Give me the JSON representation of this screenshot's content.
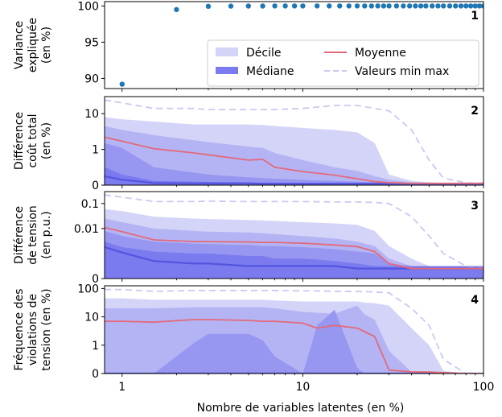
{
  "chart_data": [
    {
      "panel_label": "1",
      "type": "scatter",
      "ylabel": [
        "Variance",
        "expliquée",
        "(en %)"
      ],
      "xscale": "log",
      "xlim": [
        0.8,
        100
      ],
      "ylim": [
        88.6,
        100.6
      ],
      "yticks": [
        90,
        95,
        100
      ],
      "ytick_labels": [
        "90",
        "95",
        "100"
      ],
      "points_color": "#1f77b4",
      "points": [
        [
          1,
          89.2
        ],
        [
          2,
          99.5
        ],
        [
          3,
          99.95
        ],
        [
          4,
          99.98
        ],
        [
          5,
          99.99
        ],
        [
          6,
          99.99
        ],
        [
          7,
          100
        ],
        [
          8,
          100
        ],
        [
          9,
          100
        ],
        [
          10,
          100
        ],
        [
          12,
          100
        ],
        [
          14,
          100
        ],
        [
          16,
          100
        ],
        [
          18,
          100
        ],
        [
          20,
          100
        ],
        [
          22,
          100
        ],
        [
          24,
          100
        ],
        [
          26,
          100
        ],
        [
          28,
          100
        ],
        [
          30,
          100
        ],
        [
          33,
          100
        ],
        [
          36,
          100
        ],
        [
          39,
          100
        ],
        [
          42,
          100
        ],
        [
          45,
          100
        ],
        [
          48,
          100
        ],
        [
          52,
          100
        ],
        [
          56,
          100
        ],
        [
          60,
          100
        ],
        [
          65,
          100
        ],
        [
          70,
          100
        ],
        [
          75,
          100
        ],
        [
          80,
          100
        ],
        [
          85,
          100
        ],
        [
          90,
          100
        ],
        [
          95,
          100
        ],
        [
          100,
          100
        ]
      ],
      "legend": {
        "placement": "lower-right",
        "entries": [
          {
            "label": "Décile",
            "style": "band",
            "color": "#d4d4f8"
          },
          {
            "label": "Moyenne",
            "style": "line",
            "color": "#e3697a"
          },
          {
            "label": "Médiane",
            "style": "line-thick",
            "color": "#7b7bef"
          },
          {
            "label": "Valeurs min max",
            "style": "dashed",
            "color": "#c9c9f2"
          }
        ]
      }
    },
    {
      "panel_label": "2",
      "type": "area",
      "ylabel": [
        "Différence",
        "coût total",
        "(en %)"
      ],
      "xscale": "log",
      "yscale": "symlog",
      "xlim": [
        0.8,
        100
      ],
      "ylim": [
        0,
        30
      ],
      "yticks": [
        0,
        1,
        10
      ],
      "ytick_labels": [
        "0",
        "1",
        "10"
      ],
      "x": [
        0.8,
        1,
        1.5,
        2.5,
        3,
        5,
        6,
        7,
        10,
        15,
        20,
        25,
        30,
        40,
        50,
        60,
        80,
        100
      ],
      "minmax": {
        "max": [
          24,
          20,
          14,
          14,
          13,
          13,
          13,
          13,
          14,
          17,
          17,
          14,
          12,
          3.5,
          0.7,
          0.2,
          0.06,
          0.06
        ]
      },
      "band_levels": [
        {
          "lower": [
            0,
            0,
            0,
            0,
            0,
            0,
            0,
            0,
            0,
            0,
            0,
            0,
            0,
            0,
            0,
            0,
            0,
            0
          ],
          "upper": [
            8,
            7,
            6,
            5,
            5,
            5,
            4.8,
            4.5,
            4,
            3.5,
            3,
            1.5,
            0.3,
            0.12,
            0.08,
            0.06,
            0.05,
            0.05
          ]
        },
        {
          "lower": [
            0,
            0,
            0,
            0,
            0,
            0,
            0,
            0,
            0,
            0,
            0,
            0,
            0,
            0,
            0,
            0,
            0,
            0
          ],
          "upper": [
            4.5,
            3.5,
            2.5,
            1.8,
            1.6,
            1.2,
            1.1,
            0.9,
            0.7,
            0.5,
            0.4,
            0.25,
            0.15,
            0.08,
            0.06,
            0.05,
            0.05,
            0.05
          ]
        },
        {
          "lower": [
            0,
            0,
            0,
            0,
            0,
            0,
            0,
            0,
            0,
            0,
            0,
            0,
            0,
            0,
            0,
            0,
            0,
            0
          ],
          "upper": [
            1.5,
            1.1,
            0.5,
            0.35,
            0.3,
            0.22,
            0.2,
            0.18,
            0.15,
            0.12,
            0.1,
            0.08,
            0.06,
            0.05,
            0.05,
            0.05,
            0.05,
            0.05
          ]
        },
        {
          "lower": [
            0,
            0,
            0,
            0,
            0,
            0,
            0,
            0,
            0,
            0,
            0,
            0,
            0,
            0,
            0,
            0,
            0,
            0
          ],
          "upper": [
            0.5,
            0.3,
            0.12,
            0.1,
            0.09,
            0.08,
            0.07,
            0.07,
            0.06,
            0.06,
            0.05,
            0.05,
            0.05,
            0.05,
            0.05,
            0.05,
            0.05,
            0.05
          ]
        }
      ],
      "mean": [
        2.2,
        1.7,
        1.05,
        0.9,
        0.85,
        0.7,
        0.72,
        0.5,
        0.38,
        0.28,
        0.18,
        0.1,
        0.07,
        0.05,
        0.05,
        0.05,
        0.05,
        0.05
      ],
      "median": [
        0.25,
        0.15,
        0.06,
        0.05,
        0.05,
        0.05,
        0.04,
        0.04,
        0.04,
        0.04,
        0.04,
        0.04,
        0.04,
        0.04,
        0.04,
        0.04,
        0.04,
        0.04
      ]
    },
    {
      "panel_label": "3",
      "type": "area",
      "ylabel": [
        "Différence",
        "de tension",
        "(en p.u.)"
      ],
      "xscale": "log",
      "yscale": "symlog",
      "linthresh": 0.001,
      "xlim": [
        0.8,
        100
      ],
      "ylim": [
        0,
        0.3
      ],
      "yticks": [
        0,
        0.01,
        0.1
      ],
      "ytick_labels": [
        "0",
        "0.01",
        "0.1"
      ],
      "x": [
        0.8,
        1,
        1.5,
        2.5,
        3,
        5,
        6,
        7,
        10,
        15,
        20,
        25,
        30,
        40,
        50,
        60,
        80,
        100
      ],
      "minmax": {
        "max": [
          0.22,
          0.18,
          0.12,
          0.12,
          0.125,
          0.12,
          0.12,
          0.12,
          0.12,
          0.115,
          0.115,
          0.11,
          0.1,
          0.03,
          0.005,
          0.001,
          0.0005,
          0.0005
        ]
      },
      "band_levels": [
        {
          "lower": [
            0,
            0,
            0,
            0,
            0,
            0,
            0,
            0,
            0,
            0,
            0,
            0,
            0,
            0,
            0,
            0,
            0,
            0
          ],
          "upper": [
            0.06,
            0.05,
            0.03,
            0.025,
            0.024,
            0.022,
            0.021,
            0.02,
            0.018,
            0.016,
            0.014,
            0.008,
            0.002,
            0.0008,
            0.0005,
            0.0005,
            0.0005,
            0.0005
          ]
        },
        {
          "lower": [
            0,
            0,
            0,
            0,
            0,
            0,
            0,
            0,
            0,
            0,
            0,
            0,
            0,
            0,
            0,
            0,
            0,
            0
          ],
          "upper": [
            0.025,
            0.018,
            0.01,
            0.008,
            0.0075,
            0.007,
            0.0065,
            0.006,
            0.005,
            0.004,
            0.003,
            0.002,
            0.0008,
            0.0005,
            0.0005,
            0.0005,
            0.0005,
            0.0005
          ]
        },
        {
          "lower": [
            0,
            0,
            0,
            0,
            0,
            0,
            0,
            0,
            0,
            0,
            0,
            0,
            0,
            0,
            0,
            0,
            0,
            0
          ],
          "upper": [
            0.008,
            0.005,
            0.003,
            0.0025,
            0.0024,
            0.0022,
            0.002,
            0.002,
            0.0018,
            0.0015,
            0.0012,
            0.001,
            0.0006,
            0.0005,
            0.0005,
            0.0005,
            0.0005,
            0.0005
          ]
        },
        {
          "lower": [
            0,
            0,
            0,
            0,
            0,
            0,
            0,
            0,
            0,
            0,
            0,
            0,
            0,
            0,
            0,
            0,
            0,
            0
          ],
          "upper": [
            0.003,
            0.0018,
            0.0012,
            0.001,
            0.001,
            0.0009,
            0.0009,
            0.0008,
            0.0008,
            0.0007,
            0.0006,
            0.0005,
            0.0005,
            0.0005,
            0.0005,
            0.0005,
            0.0005,
            0.0005
          ]
        }
      ],
      "mean": [
        0.011,
        0.0075,
        0.0035,
        0.003,
        0.003,
        0.0029,
        0.0028,
        0.0028,
        0.0026,
        0.0022,
        0.0019,
        0.0012,
        0.0006,
        0.0004,
        0.0004,
        0.0004,
        0.0004,
        0.0004
      ],
      "median": [
        0.0018,
        0.0011,
        0.0007,
        0.0006,
        0.0006,
        0.0005,
        0.0005,
        0.0005,
        0.0005,
        0.0005,
        0.0004,
        0.0004,
        0.0004,
        0.0004,
        0.0004,
        0.0004,
        0.0004,
        0.0004
      ]
    },
    {
      "panel_label": "4",
      "type": "area",
      "ylabel": [
        "Fréquence des",
        "violations de",
        "tension (en %)"
      ],
      "xlabel": "Nombre de variables latentes (en %)",
      "xscale": "log",
      "yscale": "symlog",
      "xlim": [
        0.8,
        100
      ],
      "xticks": [
        1,
        10,
        100
      ],
      "xtick_labels": [
        "1",
        "10",
        "100"
      ],
      "ylim": [
        0,
        125
      ],
      "yticks": [
        0,
        1,
        10,
        100
      ],
      "ytick_labels": [
        "0",
        "1",
        "10",
        "100"
      ],
      "x": [
        0.8,
        1,
        1.5,
        2.5,
        3,
        5,
        6,
        7,
        10,
        12,
        15,
        20,
        22,
        25,
        30,
        40,
        50,
        60,
        80,
        100
      ],
      "minmax": {
        "max": [
          92,
          92,
          80,
          85,
          85,
          85,
          85,
          85,
          82,
          82,
          80,
          78,
          78,
          75,
          70,
          20,
          5,
          0.5,
          0,
          0
        ]
      },
      "band_levels": [
        {
          "lower": [
            0,
            0,
            0,
            0,
            0,
            0,
            0,
            0,
            0,
            0,
            0,
            0,
            0,
            0,
            0,
            0,
            0,
            0,
            0,
            0
          ],
          "upper": [
            45,
            45,
            40,
            40,
            40,
            40,
            40,
            38,
            35,
            35,
            35,
            35,
            32,
            30,
            25,
            4,
            1,
            0.1,
            0,
            0
          ]
        },
        {
          "lower": [
            0,
            0,
            0,
            0,
            0,
            0,
            0,
            0,
            0,
            0,
            0,
            0,
            0,
            0,
            0,
            0,
            0,
            0,
            0,
            0
          ],
          "upper": [
            20,
            20,
            20,
            22,
            22,
            22,
            22,
            20,
            15,
            14,
            13,
            25,
            12,
            8,
            0.8,
            0.05,
            0,
            0,
            0,
            0
          ]
        },
        {
          "lower": [
            0,
            0,
            0,
            0,
            0,
            0,
            0,
            0,
            0,
            0,
            0,
            0,
            0,
            0,
            0,
            0,
            0,
            0,
            0,
            0
          ],
          "upper": [
            0,
            0,
            0,
            1.2,
            2.5,
            2.5,
            1.5,
            0.6,
            0,
            5,
            18,
            0.2,
            0,
            0,
            0,
            0,
            0,
            0,
            0,
            0
          ]
        }
      ],
      "mean": [
        7,
        7,
        6.5,
        8,
        8,
        7.5,
        7,
        7,
        6,
        4,
        5,
        4,
        3,
        2,
        0.12,
        0.06,
        0.05,
        0.03,
        0,
        0
      ],
      "median": [
        0,
        0,
        0,
        0,
        0,
        0,
        0,
        0,
        0,
        0,
        0,
        0,
        0,
        0,
        0,
        0,
        0,
        0,
        0,
        0
      ]
    }
  ],
  "colors": {
    "band_levels": [
      "#d4d4f8",
      "#b4b4f4",
      "#9797f2",
      "#7b7bef"
    ],
    "mean": "#e3697a",
    "median": "#5454e0",
    "minmax": "#c9c9f2",
    "scatter": "#1f77b4"
  }
}
